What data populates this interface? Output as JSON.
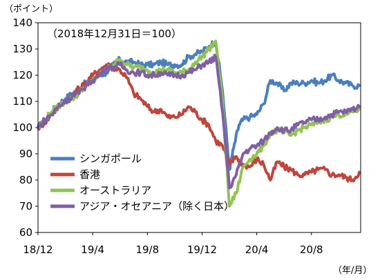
{
  "chart_data": {
    "type": "line",
    "ylabel": "（ポイント）",
    "xlabel": "（年/月）",
    "annotation": "（2018年12月31日＝100）",
    "ylim": [
      60,
      140
    ],
    "yticks": [
      60,
      70,
      80,
      90,
      100,
      110,
      120,
      130,
      140
    ],
    "x_tick_labels": [
      {
        "label": "18/12",
        "month": 0
      },
      {
        "label": "19/4",
        "month": 4
      },
      {
        "label": "19/8",
        "month": 8
      },
      {
        "label": "19/12",
        "month": 12
      },
      {
        "label": "20/4",
        "month": 16
      },
      {
        "label": "20/8",
        "month": 20
      }
    ],
    "xlim_months": [
      0,
      23.6
    ],
    "grid": false,
    "legend_position": "bottom-left",
    "series": [
      {
        "name": "シンガポール",
        "color": "#4a7fbf",
        "points": [
          [
            0,
            100
          ],
          [
            0.5,
            103
          ],
          [
            1,
            106
          ],
          [
            1.5,
            109
          ],
          [
            2,
            111
          ],
          [
            2.5,
            113
          ],
          [
            3,
            115
          ],
          [
            3.5,
            117
          ],
          [
            4,
            119
          ],
          [
            4.5,
            120
          ],
          [
            5,
            121
          ],
          [
            5.5,
            124
          ],
          [
            6,
            126
          ],
          [
            6.5,
            125
          ],
          [
            7,
            125
          ],
          [
            7.5,
            124
          ],
          [
            8,
            124
          ],
          [
            8.5,
            124
          ],
          [
            9,
            125
          ],
          [
            9.5,
            124
          ],
          [
            10,
            124
          ],
          [
            10.5,
            124
          ],
          [
            11,
            127
          ],
          [
            11.5,
            128
          ],
          [
            12,
            129
          ],
          [
            12.5,
            131
          ],
          [
            13,
            133
          ],
          [
            13.5,
            114
          ],
          [
            14,
            84
          ],
          [
            14.3,
            92
          ],
          [
            14.7,
            101
          ],
          [
            15,
            103
          ],
          [
            15.5,
            104
          ],
          [
            16,
            105
          ],
          [
            16.5,
            109
          ],
          [
            17,
            118
          ],
          [
            17.5,
            117
          ],
          [
            18,
            114
          ],
          [
            18.5,
            117
          ],
          [
            19,
            117
          ],
          [
            19.5,
            117
          ],
          [
            20,
            118
          ],
          [
            20.5,
            117
          ],
          [
            21,
            118
          ],
          [
            21.5,
            120
          ],
          [
            22,
            118
          ],
          [
            22.5,
            117
          ],
          [
            23,
            116
          ],
          [
            23.5,
            116
          ]
        ]
      },
      {
        "name": "香港",
        "color": "#c0463c",
        "points": [
          [
            0,
            100
          ],
          [
            0.5,
            102
          ],
          [
            1,
            105
          ],
          [
            1.5,
            108
          ],
          [
            2,
            110
          ],
          [
            2.5,
            112
          ],
          [
            3,
            115
          ],
          [
            3.5,
            117
          ],
          [
            4,
            120
          ],
          [
            4.5,
            122
          ],
          [
            5,
            124
          ],
          [
            5.5,
            123
          ],
          [
            6,
            122
          ],
          [
            6.5,
            119
          ],
          [
            7,
            113
          ],
          [
            7.5,
            111
          ],
          [
            8,
            108
          ],
          [
            8.5,
            106
          ],
          [
            9,
            107
          ],
          [
            9.5,
            104
          ],
          [
            10,
            104
          ],
          [
            10.5,
            105
          ],
          [
            11,
            108
          ],
          [
            11.5,
            106
          ],
          [
            12,
            103
          ],
          [
            12.5,
            101
          ],
          [
            13,
            95
          ],
          [
            13.5,
            93
          ],
          [
            14,
            86
          ],
          [
            14.5,
            89
          ],
          [
            15,
            86
          ],
          [
            15.5,
            85
          ],
          [
            16,
            88
          ],
          [
            16.5,
            86
          ],
          [
            17,
            80
          ],
          [
            17.5,
            87
          ],
          [
            18,
            85
          ],
          [
            18.5,
            84
          ],
          [
            19,
            82
          ],
          [
            19.5,
            82
          ],
          [
            20,
            83
          ],
          [
            20.5,
            84
          ],
          [
            21,
            84
          ],
          [
            21.5,
            82
          ],
          [
            22,
            82
          ],
          [
            22.5,
            81
          ],
          [
            23,
            80
          ],
          [
            23.5,
            83
          ]
        ]
      },
      {
        "name": "オーストラリア",
        "color": "#92c353",
        "points": [
          [
            0,
            100
          ],
          [
            0.5,
            103
          ],
          [
            1,
            106
          ],
          [
            1.5,
            108
          ],
          [
            2,
            110
          ],
          [
            2.5,
            111
          ],
          [
            3,
            113
          ],
          [
            3.5,
            116
          ],
          [
            4,
            118
          ],
          [
            4.5,
            120
          ],
          [
            5,
            122
          ],
          [
            5.5,
            124
          ],
          [
            6,
            126
          ],
          [
            6.5,
            124
          ],
          [
            7,
            123
          ],
          [
            7.5,
            123
          ],
          [
            8,
            122
          ],
          [
            8.5,
            121
          ],
          [
            9,
            122
          ],
          [
            9.5,
            122
          ],
          [
            10,
            121
          ],
          [
            10.5,
            121
          ],
          [
            11,
            122
          ],
          [
            11.5,
            125
          ],
          [
            12,
            127
          ],
          [
            12.5,
            130
          ],
          [
            13,
            133
          ],
          [
            13.5,
            110
          ],
          [
            14,
            70
          ],
          [
            14.5,
            75
          ],
          [
            15,
            85
          ],
          [
            15.5,
            88
          ],
          [
            16,
            90
          ],
          [
            16.5,
            93
          ],
          [
            17,
            98
          ],
          [
            17.5,
            99
          ],
          [
            18,
            98
          ],
          [
            18.5,
            97
          ],
          [
            19,
            99
          ],
          [
            19.5,
            100
          ],
          [
            20,
            101
          ],
          [
            20.5,
            102
          ],
          [
            21,
            103
          ],
          [
            21.5,
            104
          ],
          [
            22,
            105
          ],
          [
            22.5,
            105
          ],
          [
            23,
            106
          ],
          [
            23.5,
            107
          ]
        ]
      },
      {
        "name": "アジア・オセアニア（除く日本）",
        "color": "#7f5fa5",
        "points": [
          [
            0,
            100
          ],
          [
            0.5,
            103
          ],
          [
            1,
            105
          ],
          [
            1.5,
            108
          ],
          [
            2,
            110
          ],
          [
            2.5,
            112
          ],
          [
            3,
            113
          ],
          [
            3.5,
            116
          ],
          [
            4,
            118
          ],
          [
            4.5,
            120
          ],
          [
            5,
            123
          ],
          [
            5.5,
            123
          ],
          [
            6,
            124
          ],
          [
            6.5,
            122
          ],
          [
            7,
            121
          ],
          [
            7.5,
            121
          ],
          [
            8,
            120
          ],
          [
            8.5,
            120
          ],
          [
            9,
            121
          ],
          [
            9.5,
            120
          ],
          [
            10,
            120
          ],
          [
            10.5,
            120
          ],
          [
            11,
            121
          ],
          [
            11.5,
            122
          ],
          [
            12,
            124
          ],
          [
            12.5,
            125
          ],
          [
            13,
            127
          ],
          [
            13.5,
            106
          ],
          [
            14,
            77
          ],
          [
            14.5,
            82
          ],
          [
            15,
            90
          ],
          [
            15.5,
            92
          ],
          [
            16,
            93
          ],
          [
            16.5,
            95
          ],
          [
            17,
            98
          ],
          [
            17.5,
            100
          ],
          [
            18,
            99
          ],
          [
            18.5,
            99
          ],
          [
            19,
            101
          ],
          [
            19.5,
            102
          ],
          [
            20,
            103
          ],
          [
            20.5,
            103
          ],
          [
            21,
            104
          ],
          [
            21.5,
            105
          ],
          [
            22,
            106
          ],
          [
            22.5,
            106
          ],
          [
            23,
            107
          ],
          [
            23.5,
            108
          ]
        ]
      }
    ]
  }
}
